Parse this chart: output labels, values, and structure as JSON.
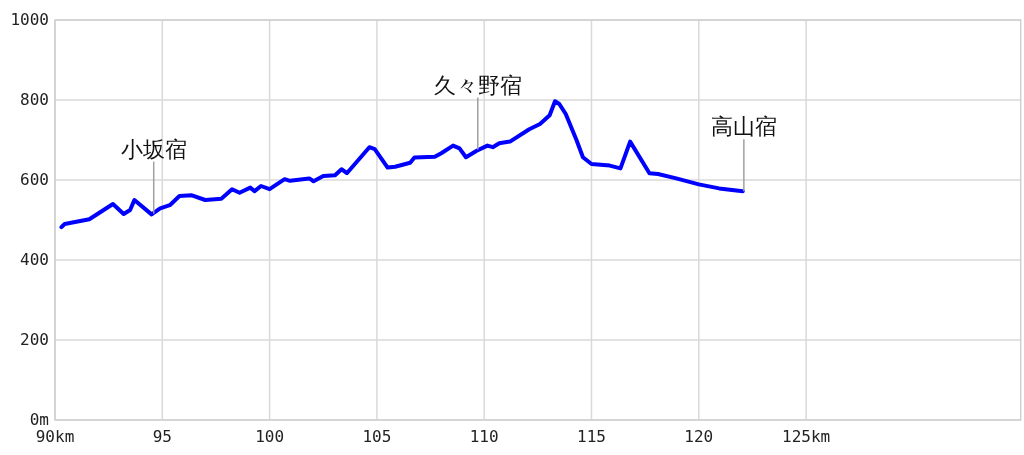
{
  "chart_data": {
    "type": "line",
    "color": "#0000ff",
    "x": [
      90.3,
      90.45,
      91.6,
      92.7,
      93.2,
      93.5,
      93.7,
      94.5,
      94.9,
      95.35,
      95.8,
      96.35,
      97.0,
      97.75,
      98.25,
      98.6,
      99.1,
      99.3,
      99.6,
      100.0,
      100.7,
      100.95,
      101.85,
      102.05,
      102.5,
      103.05,
      103.35,
      103.6,
      104.65,
      104.9,
      105.5,
      105.85,
      106.55,
      106.75,
      107.7,
      108.0,
      108.55,
      108.85,
      109.15,
      109.65,
      110.15,
      110.4,
      110.7,
      111.2,
      112.1,
      112.6,
      113.05,
      113.3,
      113.5,
      113.8,
      114.3,
      114.6,
      115.0,
      115.85,
      116.35,
      116.8,
      117.7,
      118.1,
      118.95,
      120.0,
      120.95,
      122.05
    ],
    "values": [
      482,
      490,
      502,
      540,
      515,
      525,
      550,
      514,
      529,
      537,
      560,
      562,
      550,
      553,
      577,
      568,
      581,
      572,
      585,
      577,
      602,
      598,
      604,
      597,
      610,
      612,
      627,
      617,
      682,
      677,
      631,
      633,
      643,
      656,
      658,
      667,
      686,
      679,
      657,
      673,
      686,
      682,
      692,
      696,
      727,
      740,
      762,
      797,
      790,
      765,
      700,
      657,
      640,
      636,
      629,
      696,
      617,
      615,
      604,
      589,
      579,
      572
    ],
    "xlim": [
      90,
      135
    ],
    "xticks": [
      {
        "value": 90,
        "label": "90km"
      },
      95,
      100,
      105,
      110,
      115,
      120,
      {
        "value": 125,
        "label": "125km"
      }
    ],
    "ylim": [
      0,
      1000
    ],
    "yticks": [
      {
        "value": 0,
        "label": "0m"
      },
      200,
      400,
      600,
      800,
      1000
    ],
    "grid": true,
    "annotations": [
      {
        "text": "小坂宿",
        "x": 94.6,
        "y": 516
      },
      {
        "text": "久々野宿",
        "x": 109.7,
        "y": 676
      },
      {
        "text": "高山宿",
        "x": 122.1,
        "y": 572
      }
    ]
  }
}
